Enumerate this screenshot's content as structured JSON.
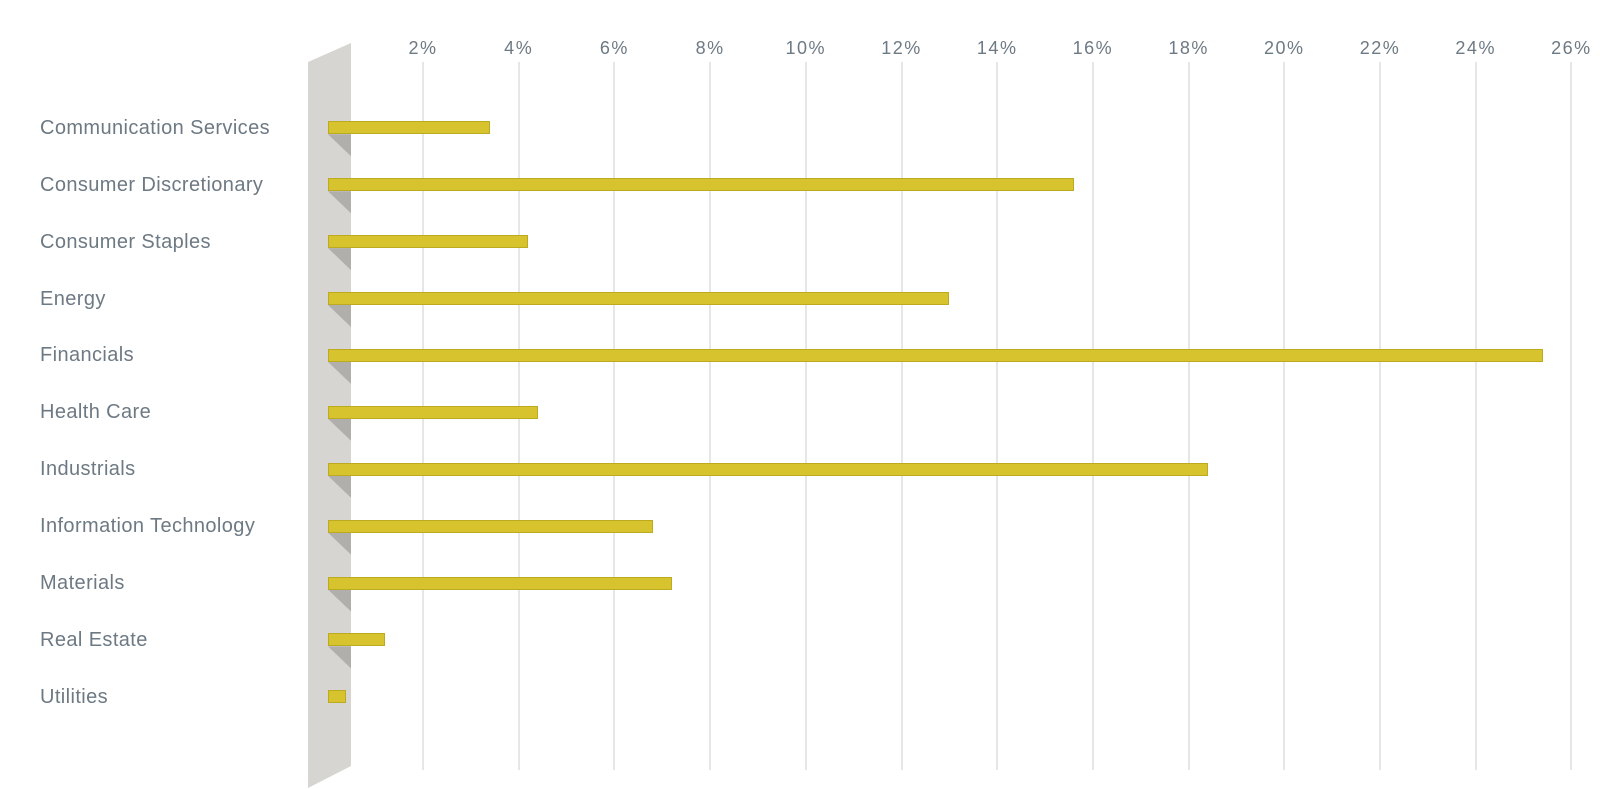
{
  "chart_data": {
    "type": "bar",
    "orientation": "horizontal",
    "title": "",
    "categories": [
      "Communication Services",
      "Consumer Discretionary",
      "Consumer Staples",
      "Energy",
      "Financials",
      "Health Care",
      "Industrials",
      "Information Technology",
      "Materials",
      "Real Estate",
      "Utilities"
    ],
    "values": [
      3.4,
      15.6,
      4.2,
      13.0,
      25.4,
      4.4,
      18.4,
      6.8,
      7.2,
      1.2,
      0.4
    ],
    "value_unit": "%",
    "x_tick_labels": [
      "2%",
      "4%",
      "6%",
      "8%",
      "10%",
      "12%",
      "14%",
      "16%",
      "18%",
      "20%",
      "22%",
      "24%",
      "26%"
    ],
    "x_tick_values": [
      2,
      4,
      6,
      8,
      10,
      12,
      14,
      16,
      18,
      20,
      22,
      24,
      26
    ],
    "xlim": [
      0,
      26
    ],
    "ylabel": "",
    "xlabel": "",
    "grid": "vertical-only",
    "legend_position": "none",
    "style": {
      "bar_fill": "#d6c32e",
      "bar_border": "#bcab21",
      "axis_wall_fill": "#d6d5d2",
      "bar_shadow_fill": "#b0afac",
      "gridline_color": "#e7e6e4",
      "text_color": "#6d7983",
      "background": "#ffffff"
    }
  }
}
